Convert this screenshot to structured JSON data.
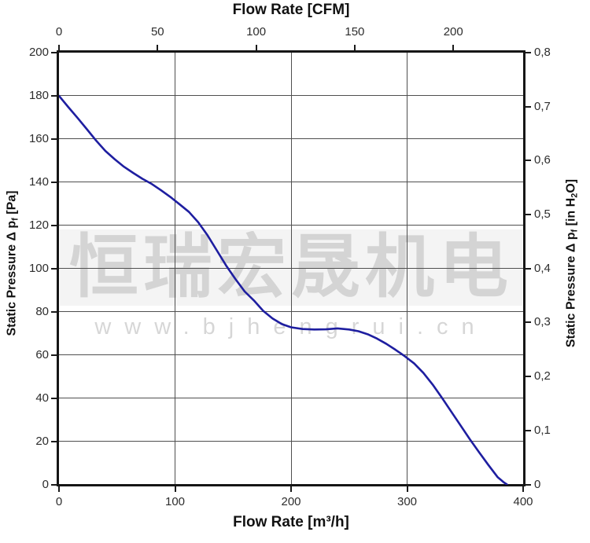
{
  "watermark": {
    "company_cn": "恒瑞宏晟机电",
    "url": "www.bjhengrui.cn"
  },
  "chart_data": {
    "type": "line",
    "title_top": "Flow Rate [CFM]",
    "xlabel_bottom": "Flow Rate [m³/h]",
    "ylabel_left_pre": "Static Pressure Δ p",
    "ylabel_left_sub": "f",
    "ylabel_left_post": " [Pa]",
    "ylabel_right_pre": "Static Pressure Δ p",
    "ylabel_right_sub": "f",
    "ylabel_right_mid": " [in H",
    "ylabel_right_sub2": "2",
    "ylabel_right_post": "O]",
    "x_axis_bottom": {
      "unit": "m³/h",
      "min": 0,
      "max": 400,
      "tick_labels": [
        "0",
        "100",
        "200",
        "300",
        "400"
      ],
      "tick_values": [
        0,
        100,
        200,
        300,
        400
      ]
    },
    "x_axis_top": {
      "unit": "CFM",
      "m3h_per_cfm": 1.699,
      "tick_labels": [
        "0",
        "50",
        "100",
        "150",
        "200"
      ],
      "tick_values": [
        0,
        50,
        100,
        150,
        200
      ]
    },
    "y_axis_left": {
      "unit": "Pa",
      "min": 0,
      "max": 200,
      "tick_labels": [
        "200",
        "180",
        "160",
        "140",
        "120",
        "100",
        "80",
        "60",
        "40",
        "20",
        "0"
      ],
      "tick_values": [
        200,
        180,
        160,
        140,
        120,
        100,
        80,
        60,
        40,
        20,
        0
      ],
      "gridlines": [
        180,
        160,
        140,
        120,
        100,
        80,
        60,
        40,
        20
      ]
    },
    "y_axis_right": {
      "unit": "in H2O",
      "min": 0,
      "max": 0.8,
      "tick_labels": [
        "0,8",
        "0,7",
        "0,6",
        "0,5",
        "0,4",
        "0,3",
        "0,2",
        "0,1",
        "0"
      ],
      "tick_values": [
        0.8,
        0.7,
        0.6,
        0.5,
        0.4,
        0.3,
        0.2,
        0.1,
        0
      ]
    },
    "v_gridlines_m3h": [
      100,
      200,
      300
    ],
    "grid": true,
    "legend": false,
    "series": [
      {
        "name": "static-pressure-vs-flow",
        "color": "#1e1ea0",
        "points": [
          [
            0,
            180
          ],
          [
            8,
            174.8
          ],
          [
            16,
            169.8
          ],
          [
            24,
            164.6
          ],
          [
            32,
            159.3
          ],
          [
            40,
            154.5
          ],
          [
            48,
            150.7
          ],
          [
            56,
            147.2
          ],
          [
            64,
            144.3
          ],
          [
            72,
            141.6
          ],
          [
            80,
            139.2
          ],
          [
            88,
            136.3
          ],
          [
            96,
            133.2
          ],
          [
            104,
            129.8
          ],
          [
            112,
            126.3
          ],
          [
            120,
            121.5
          ],
          [
            128,
            115.5
          ],
          [
            136,
            108.5
          ],
          [
            144,
            101.5
          ],
          [
            152,
            95.3
          ],
          [
            160,
            89.5
          ],
          [
            168,
            85.3
          ],
          [
            176,
            80.5
          ],
          [
            184,
            77.0
          ],
          [
            192,
            74.4
          ],
          [
            200,
            72.9
          ],
          [
            210,
            72.1
          ],
          [
            220,
            71.9
          ],
          [
            230,
            72.0
          ],
          [
            240,
            72.4
          ],
          [
            250,
            71.9
          ],
          [
            258,
            71.1
          ],
          [
            266,
            69.7
          ],
          [
            274,
            67.7
          ],
          [
            282,
            65.3
          ],
          [
            290,
            62.5
          ],
          [
            298,
            59.5
          ],
          [
            306,
            56.2
          ],
          [
            314,
            51.8
          ],
          [
            322,
            46.4
          ],
          [
            330,
            40.3
          ],
          [
            338,
            33.9
          ],
          [
            346,
            27.5
          ],
          [
            354,
            21.2
          ],
          [
            362,
            15.1
          ],
          [
            370,
            9.2
          ],
          [
            378,
            3.6
          ],
          [
            383,
            1.3
          ],
          [
            386,
            0.2
          ]
        ]
      }
    ]
  }
}
